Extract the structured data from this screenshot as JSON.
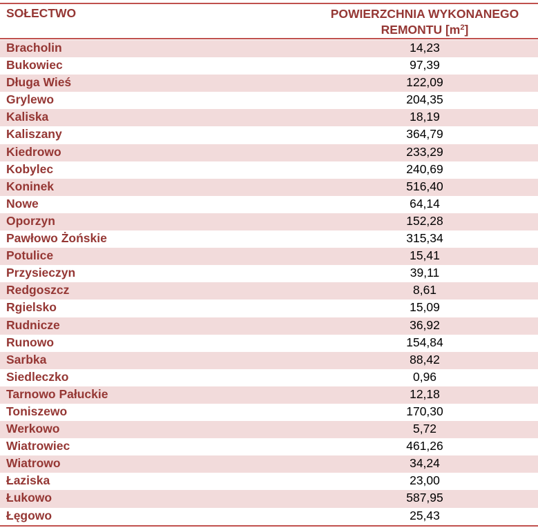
{
  "table": {
    "header": {
      "col1": "SOŁECTWO",
      "col2_line1": "POWIERZCHNIA WYKONANEGO",
      "col2_line2": "REMONTU [m",
      "col2_sup": "2",
      "col2_end": "]"
    },
    "rows": [
      {
        "name": "Bracholin",
        "value": "14,23"
      },
      {
        "name": "Bukowiec",
        "value": "97,39"
      },
      {
        "name": "Długa Wieś",
        "value": "122,09"
      },
      {
        "name": "Grylewo",
        "value": "204,35"
      },
      {
        "name": "Kaliska",
        "value": "18,19"
      },
      {
        "name": "Kaliszany",
        "value": "364,79"
      },
      {
        "name": "Kiedrowo",
        "value": "233,29"
      },
      {
        "name": "Kobylec",
        "value": "240,69"
      },
      {
        "name": "Koninek",
        "value": "516,40"
      },
      {
        "name": "Nowe",
        "value": "64,14"
      },
      {
        "name": "Oporzyn",
        "value": "152,28"
      },
      {
        "name": "Pawłowo Żońskie",
        "value": "315,34"
      },
      {
        "name": "Potulice",
        "value": "15,41"
      },
      {
        "name": "Przysieczyn",
        "value": "39,11"
      },
      {
        "name": "Redgoszcz",
        "value": "8,61"
      },
      {
        "name": "Rgielsko",
        "value": "15,09"
      },
      {
        "name": "Rudnicze",
        "value": "36,92"
      },
      {
        "name": "Runowo",
        "value": "154,84"
      },
      {
        "name": "Sarbka",
        "value": "88,42"
      },
      {
        "name": "Siedleczko",
        "value": "0,96"
      },
      {
        "name": "Tarnowo Pałuckie",
        "value": "12,18"
      },
      {
        "name": "Toniszewo",
        "value": "170,30"
      },
      {
        "name": "Werkowo",
        "value": "5,72"
      },
      {
        "name": "Wiatrowiec",
        "value": "461,26"
      },
      {
        "name": "Wiatrowo",
        "value": "34,24"
      },
      {
        "name": "Łaziska",
        "value": "23,00"
      },
      {
        "name": "Łukowo",
        "value": "587,95"
      },
      {
        "name": "Łęgowo",
        "value": "25,43"
      }
    ],
    "colors": {
      "accent": "#c0504d",
      "header_text": "#953734",
      "shaded_row": "#f2dbdb",
      "value_text": "#000000"
    }
  }
}
